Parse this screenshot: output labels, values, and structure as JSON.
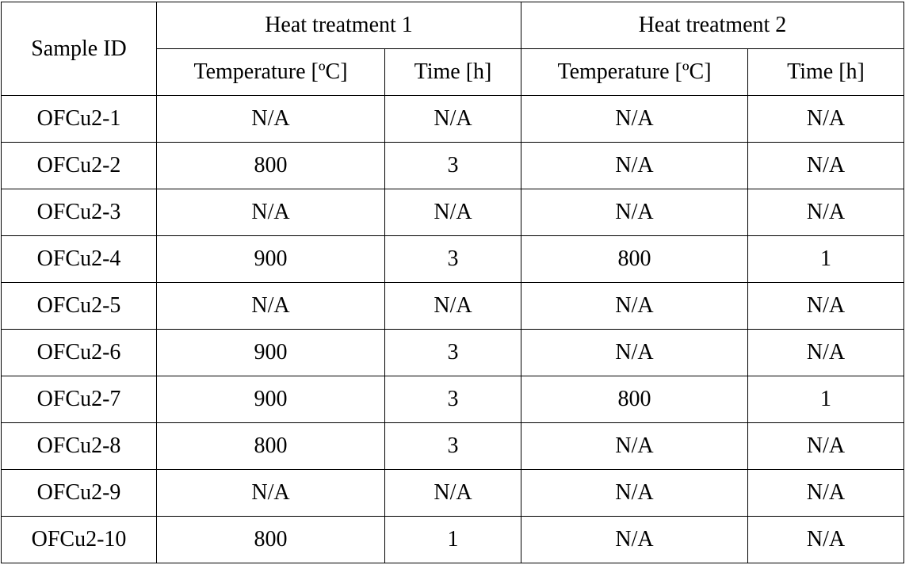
{
  "table": {
    "headers": {
      "sample_id": "Sample ID",
      "group1": "Heat treatment 1",
      "group2": "Heat treatment 2",
      "temperature": "Temperature [ºC]",
      "time": "Time [h]"
    },
    "rows": [
      {
        "id": "OFCu2-1",
        "t1_temp": "N/A",
        "t1_time": "N/A",
        "t2_temp": "N/A",
        "t2_time": "N/A"
      },
      {
        "id": "OFCu2-2",
        "t1_temp": "800",
        "t1_time": "3",
        "t2_temp": "N/A",
        "t2_time": "N/A"
      },
      {
        "id": "OFCu2-3",
        "t1_temp": "N/A",
        "t1_time": "N/A",
        "t2_temp": "N/A",
        "t2_time": "N/A"
      },
      {
        "id": "OFCu2-4",
        "t1_temp": "900",
        "t1_time": "3",
        "t2_temp": "800",
        "t2_time": "1"
      },
      {
        "id": "OFCu2-5",
        "t1_temp": "N/A",
        "t1_time": "N/A",
        "t2_temp": "N/A",
        "t2_time": "N/A"
      },
      {
        "id": "OFCu2-6",
        "t1_temp": "900",
        "t1_time": "3",
        "t2_temp": "N/A",
        "t2_time": "N/A"
      },
      {
        "id": "OFCu2-7",
        "t1_temp": "900",
        "t1_time": "3",
        "t2_temp": "800",
        "t2_time": "1"
      },
      {
        "id": "OFCu2-8",
        "t1_temp": "800",
        "t1_time": "3",
        "t2_temp": "N/A",
        "t2_time": "N/A"
      },
      {
        "id": "OFCu2-9",
        "t1_temp": "N/A",
        "t1_time": "N/A",
        "t2_temp": "N/A",
        "t2_time": "N/A"
      },
      {
        "id": "OFCu2-10",
        "t1_temp": "800",
        "t1_time": "1",
        "t2_temp": "N/A",
        "t2_time": "N/A"
      }
    ]
  }
}
